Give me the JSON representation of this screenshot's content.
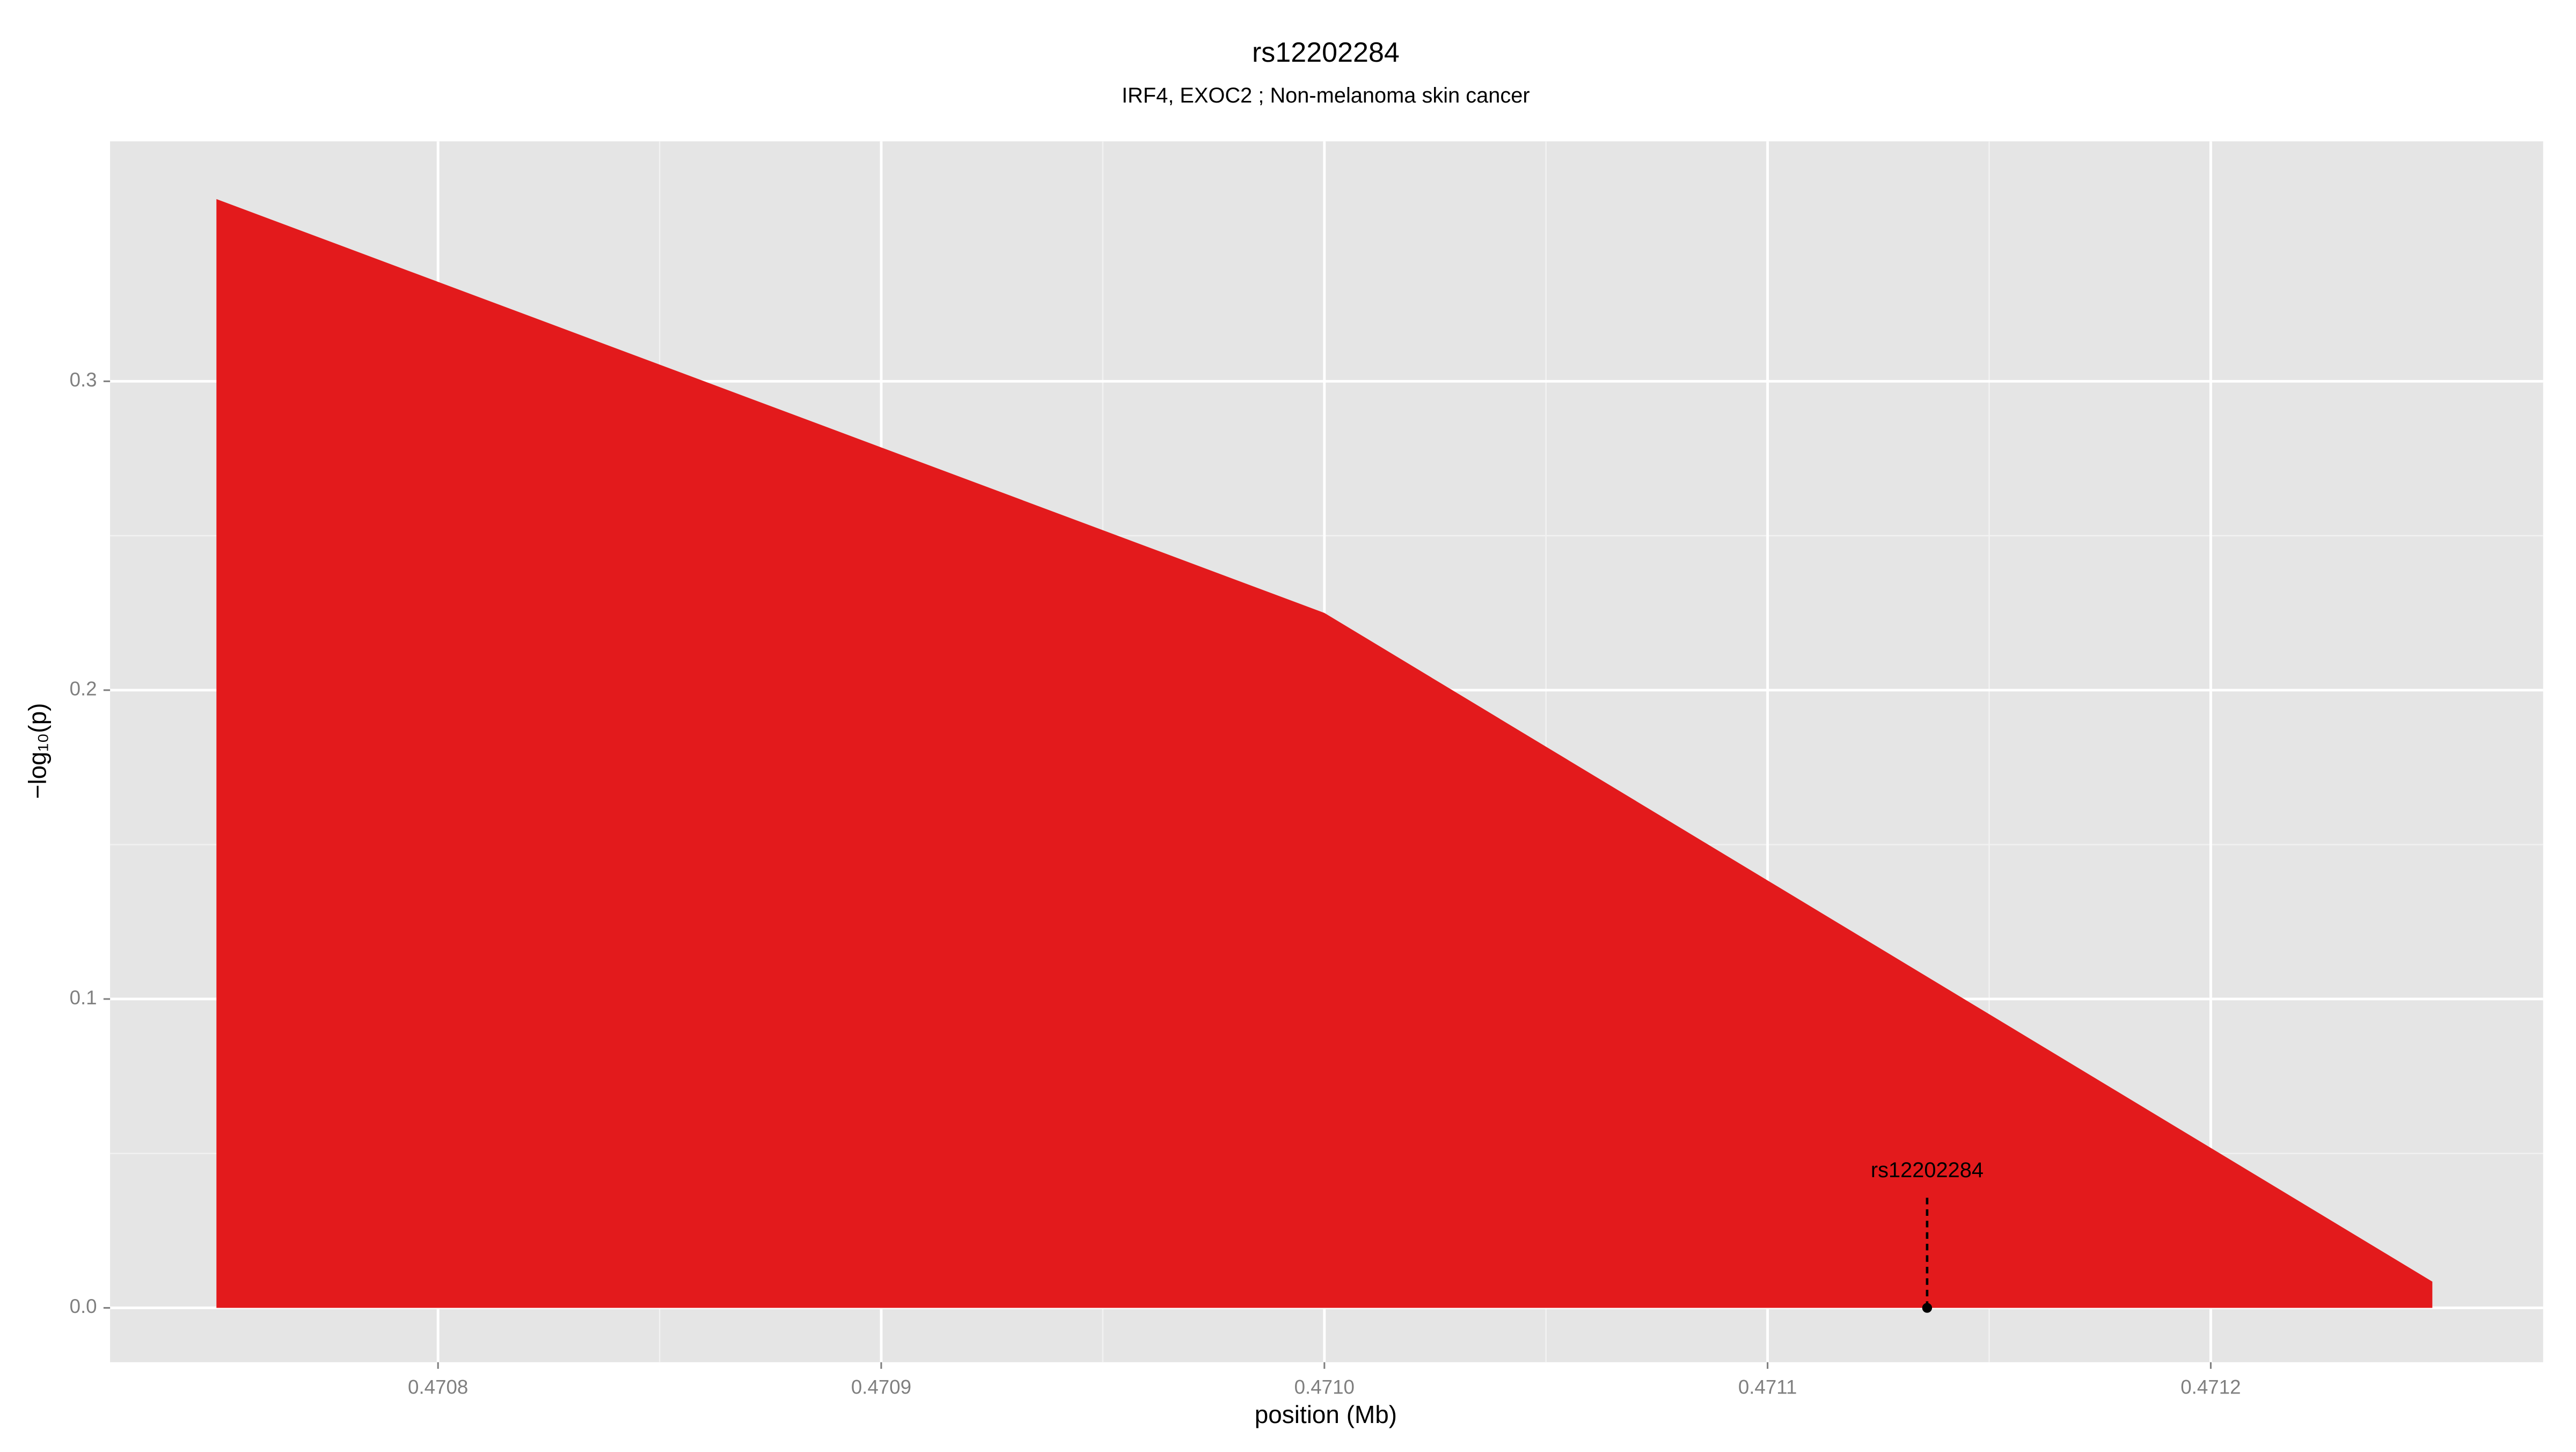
{
  "chart_data": {
    "type": "area",
    "title": "rs12202284",
    "subtitle": "IRF4, EXOC2 ; Non-melanoma skin cancer",
    "xlabel": "position (Mb)",
    "ylabel": "−log₁₀(p)",
    "x": [
      0.47075,
      0.471,
      0.47125
    ],
    "series": [
      {
        "color": "#e31a1c",
        "values": [
          0.359,
          0.225,
          0.0085
        ]
      }
    ],
    "xlim": [
      0.470726,
      0.471275
    ],
    "ylim": [
      -0.0176,
      0.3777
    ],
    "xticks": [
      0.4708,
      0.4709,
      {
        "value": 0.471,
        "label": "0.4710"
      },
      0.4711,
      0.4712
    ],
    "yticks": [
      {
        "value": 0,
        "label": "0.0"
      },
      0.1,
      0.2,
      0.3
    ],
    "grid": true,
    "annotation": {
      "text": "rs12202284",
      "x": 0.471136,
      "y": 0
    }
  }
}
